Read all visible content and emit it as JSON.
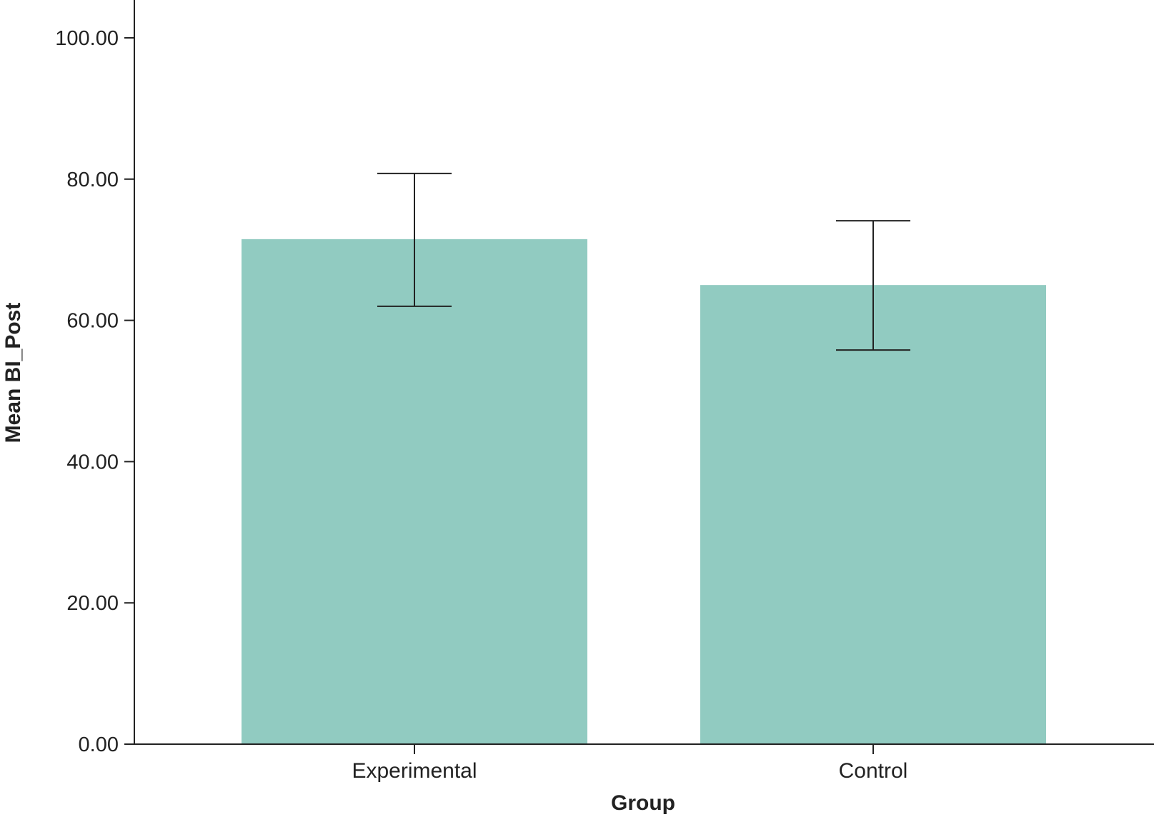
{
  "chart_data": {
    "type": "bar",
    "title": "",
    "xlabel": "Group",
    "ylabel": "Mean BI_Post",
    "categories": [
      "Experimental",
      "Control"
    ],
    "values": [
      71.5,
      65.0
    ],
    "error_bars": {
      "lower": [
        62.0,
        55.8
      ],
      "upper": [
        80.8,
        74.1
      ]
    },
    "ylim": [
      0,
      100
    ],
    "yticks": [
      0,
      20,
      40,
      60,
      80,
      100
    ],
    "ytick_labels": [
      "0.00",
      "20.00",
      "40.00",
      "60.00",
      "80.00",
      "100.00"
    ],
    "grid": false,
    "legend": "none",
    "bar_color": "#91cbc1",
    "axis_color": "#222222"
  }
}
